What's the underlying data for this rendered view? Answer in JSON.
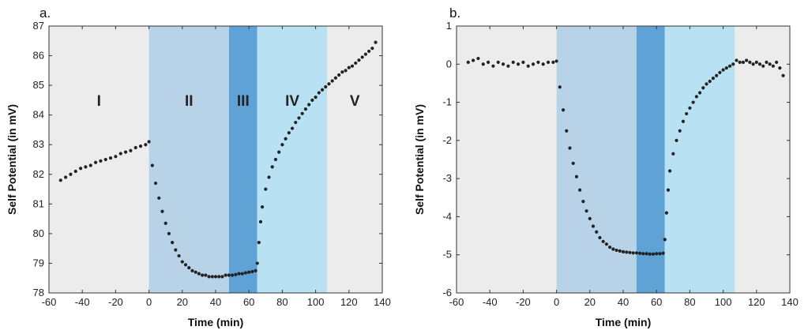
{
  "colors": {
    "shade_outer": "#ececec",
    "shade_II": "#b8d3e8",
    "shade_III": "#5fa3d6",
    "shade_IV": "#b8e2f4",
    "points": "#222222",
    "frame": "#333333"
  },
  "chart_data": [
    {
      "type": "scatter",
      "panel_label": "a.",
      "xlabel": "Time (min)",
      "ylabel": "Self Potential (in mV)",
      "xlim": [
        -60,
        140
      ],
      "ylim": [
        78,
        87
      ],
      "xticks": [
        "-60",
        "-40",
        "-20",
        "0",
        "20",
        "40",
        "60",
        "80",
        "100",
        "120",
        "140"
      ],
      "yticks": [
        "78",
        "79",
        "80",
        "81",
        "82",
        "83",
        "84",
        "85",
        "86",
        "87"
      ],
      "phases": [
        {
          "label": "I",
          "x_start": -60,
          "x_end": 0
        },
        {
          "label": "II",
          "x_start": 0,
          "x_end": 48
        },
        {
          "label": "III",
          "x_start": 48,
          "x_end": 65
        },
        {
          "label": "IV",
          "x_start": 65,
          "x_end": 107
        },
        {
          "label": "V",
          "x_start": 107,
          "x_end": 140
        }
      ],
      "phase_label_y": 84.5,
      "series": [
        {
          "name": "Self Potential",
          "x": [
            -53,
            -50,
            -47,
            -44,
            -41,
            -38,
            -35,
            -32,
            -29,
            -26,
            -23,
            -20,
            -17,
            -14,
            -11,
            -8,
            -5,
            -2,
            0,
            2,
            4,
            6,
            8,
            10,
            12,
            14,
            16,
            18,
            20,
            22,
            24,
            26,
            28,
            30,
            32,
            34,
            36,
            38,
            40,
            42,
            44,
            46,
            48,
            50,
            52,
            54,
            56,
            58,
            60,
            62,
            64,
            65,
            66,
            67,
            68,
            70,
            72,
            74,
            76,
            78,
            80,
            82,
            84,
            86,
            88,
            90,
            92,
            94,
            96,
            98,
            100,
            102,
            104,
            106,
            108,
            110,
            112,
            114,
            116,
            118,
            120,
            122,
            124,
            126,
            128,
            130,
            132,
            134,
            136
          ],
          "y": [
            81.8,
            81.9,
            82.0,
            82.1,
            82.2,
            82.25,
            82.3,
            82.4,
            82.45,
            82.5,
            82.55,
            82.6,
            82.7,
            82.75,
            82.8,
            82.9,
            82.95,
            83.0,
            83.1,
            82.3,
            81.7,
            81.2,
            80.75,
            80.35,
            80.0,
            79.7,
            79.45,
            79.25,
            79.05,
            78.95,
            78.85,
            78.75,
            78.7,
            78.65,
            78.6,
            78.6,
            78.55,
            78.55,
            78.55,
            78.55,
            78.55,
            78.6,
            78.6,
            78.6,
            78.62,
            78.65,
            78.65,
            78.68,
            78.7,
            78.72,
            78.75,
            79.0,
            79.7,
            80.4,
            80.9,
            81.5,
            81.9,
            82.25,
            82.5,
            82.75,
            83.0,
            83.2,
            83.4,
            83.55,
            83.75,
            83.9,
            84.05,
            84.2,
            84.35,
            84.5,
            84.6,
            84.75,
            84.85,
            84.95,
            85.05,
            85.15,
            85.25,
            85.35,
            85.45,
            85.5,
            85.6,
            85.65,
            85.75,
            85.85,
            85.95,
            86.05,
            86.15,
            86.25,
            86.45
          ]
        }
      ]
    },
    {
      "type": "scatter",
      "panel_label": "b.",
      "xlabel": "Time (min)",
      "ylabel": "Self Potential (in mV)",
      "xlim": [
        -60,
        140
      ],
      "ylim": [
        -6,
        1
      ],
      "xticks": [
        "-60",
        "-40",
        "-20",
        "0",
        "20",
        "40",
        "60",
        "80",
        "100",
        "120",
        "140"
      ],
      "yticks": [
        "-6",
        "-5",
        "-4",
        "-3",
        "-2",
        "-1",
        "0",
        "1"
      ],
      "phases": [
        {
          "label": "",
          "x_start": -60,
          "x_end": 0
        },
        {
          "label": "",
          "x_start": 0,
          "x_end": 48
        },
        {
          "label": "",
          "x_start": 48,
          "x_end": 65
        },
        {
          "label": "",
          "x_start": 65,
          "x_end": 107
        },
        {
          "label": "",
          "x_start": 107,
          "x_end": 140
        }
      ],
      "series": [
        {
          "name": "Self Potential",
          "x": [
            -53,
            -50,
            -47,
            -44,
            -41,
            -38,
            -35,
            -32,
            -29,
            -26,
            -23,
            -20,
            -17,
            -14,
            -11,
            -8,
            -5,
            -2,
            0,
            2,
            4,
            6,
            8,
            10,
            12,
            14,
            16,
            18,
            20,
            22,
            24,
            26,
            28,
            30,
            32,
            34,
            36,
            38,
            40,
            42,
            44,
            46,
            48,
            50,
            52,
            54,
            56,
            58,
            60,
            62,
            64,
            65,
            66,
            67,
            68,
            70,
            72,
            74,
            76,
            78,
            80,
            82,
            84,
            86,
            88,
            90,
            92,
            94,
            96,
            98,
            100,
            102,
            104,
            106,
            108,
            110,
            112,
            114,
            116,
            118,
            120,
            122,
            124,
            126,
            128,
            130,
            132,
            134,
            136
          ],
          "y": [
            0.05,
            0.1,
            0.15,
            0.0,
            0.05,
            -0.05,
            0.05,
            0.0,
            -0.05,
            0.05,
            0.0,
            0.05,
            -0.05,
            0.0,
            0.05,
            0.0,
            0.05,
            0.05,
            0.08,
            -0.6,
            -1.2,
            -1.75,
            -2.2,
            -2.6,
            -2.95,
            -3.3,
            -3.6,
            -3.85,
            -4.05,
            -4.25,
            -4.4,
            -4.55,
            -4.65,
            -4.72,
            -4.8,
            -4.85,
            -4.88,
            -4.9,
            -4.92,
            -4.93,
            -4.94,
            -4.95,
            -4.95,
            -4.96,
            -4.97,
            -4.97,
            -4.98,
            -4.98,
            -4.97,
            -4.97,
            -4.96,
            -4.6,
            -3.9,
            -3.3,
            -2.8,
            -2.35,
            -2.0,
            -1.75,
            -1.5,
            -1.3,
            -1.15,
            -1.0,
            -0.85,
            -0.75,
            -0.62,
            -0.52,
            -0.45,
            -0.37,
            -0.3,
            -0.22,
            -0.15,
            -0.1,
            -0.05,
            0.0,
            0.1,
            0.05,
            0.05,
            0.1,
            0.05,
            0.0,
            0.05,
            0.0,
            -0.05,
            0.05,
            0.0,
            -0.05,
            0.05,
            -0.1,
            -0.3
          ]
        }
      ]
    }
  ]
}
